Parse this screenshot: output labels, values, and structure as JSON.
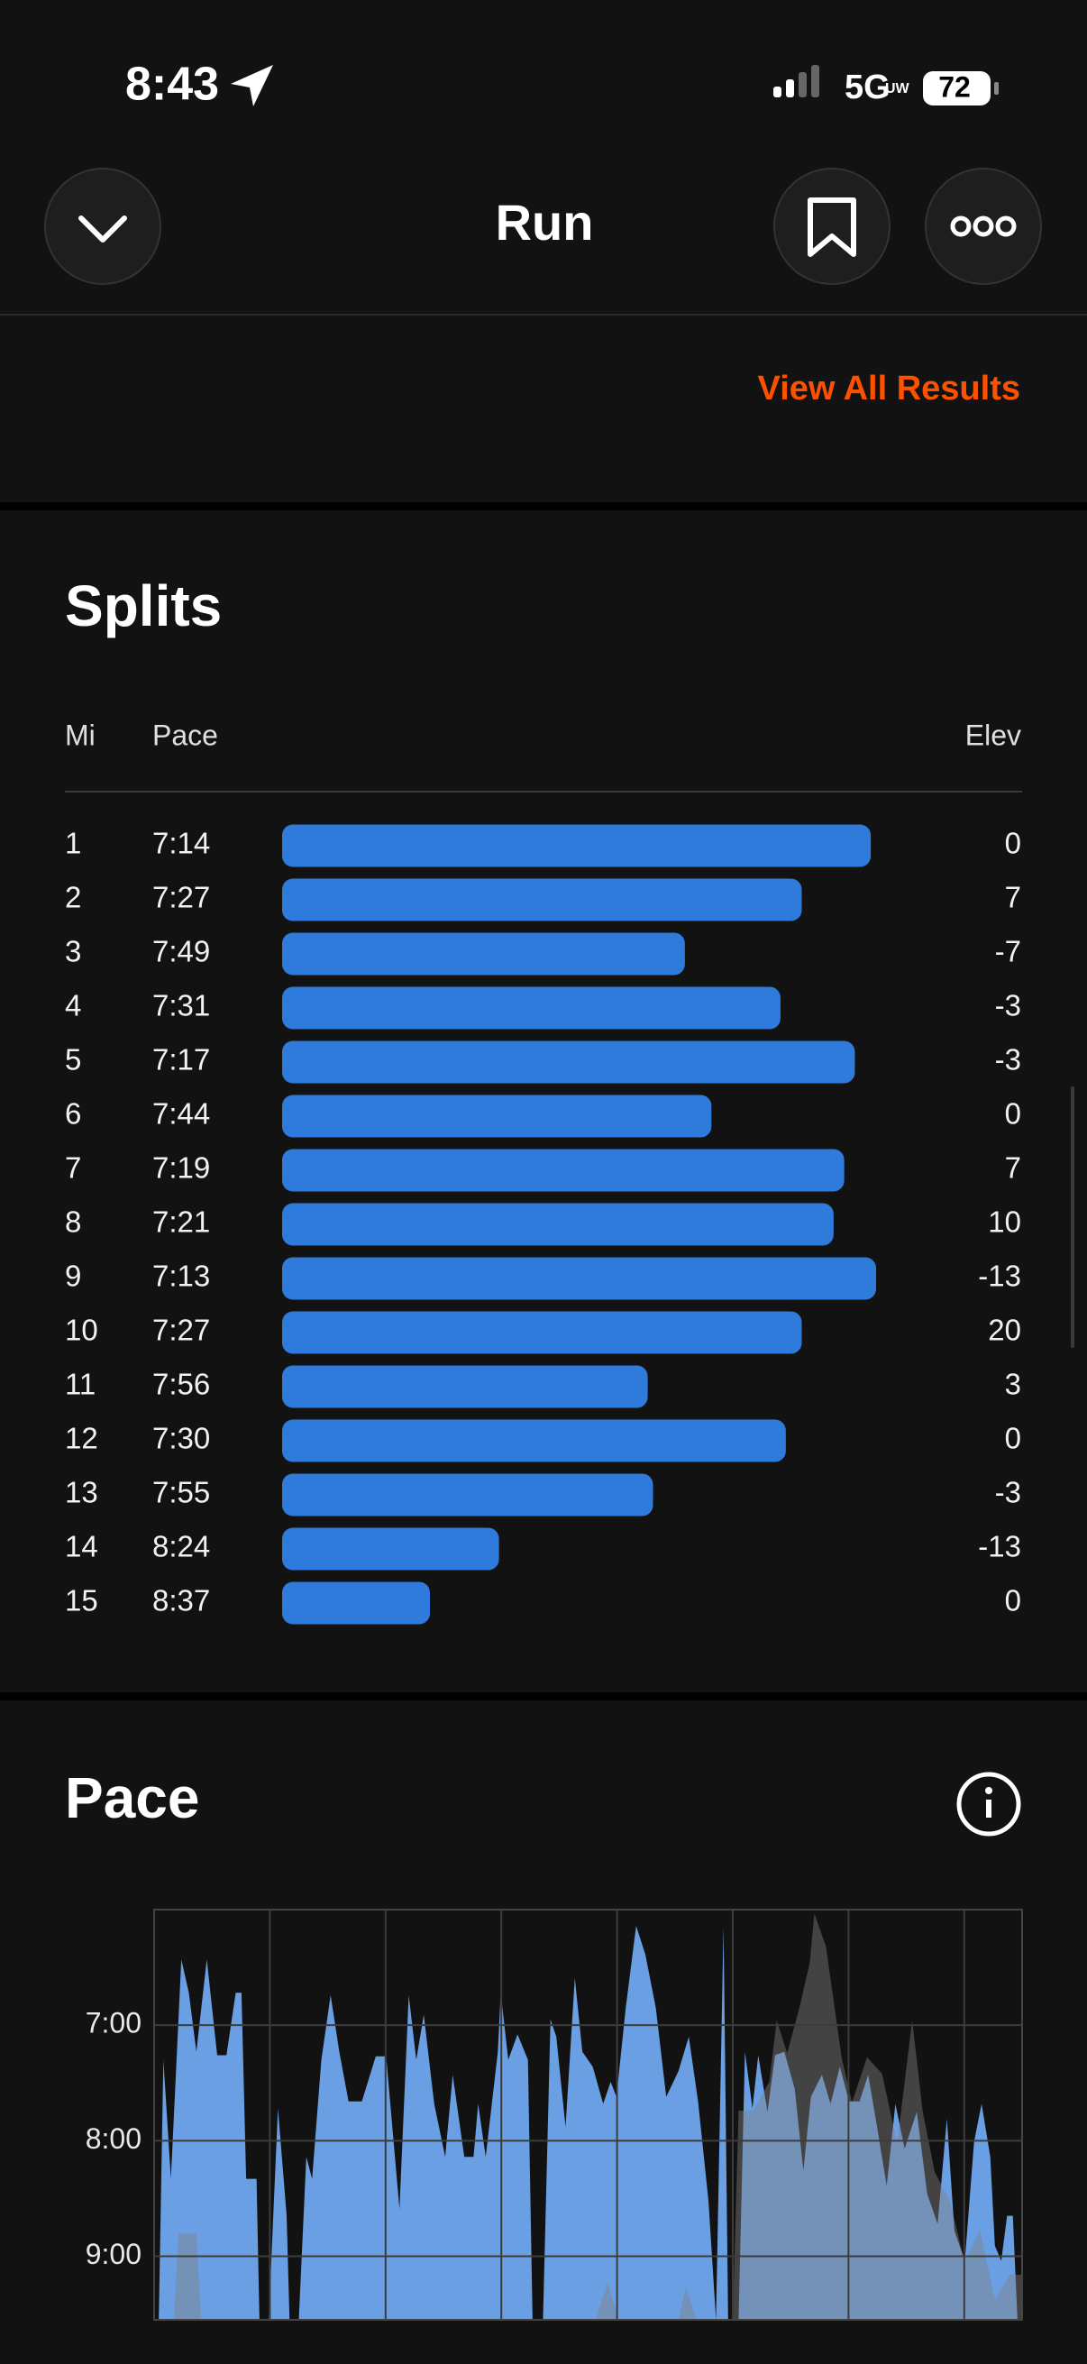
{
  "status_bar": {
    "time": "8:43",
    "network": "5G",
    "network_sub": "UW",
    "battery": "72"
  },
  "nav": {
    "title": "Run"
  },
  "results_link": "View All Results",
  "splits": {
    "title": "Splits",
    "columns": [
      "Mi",
      "Pace",
      "Elev"
    ],
    "rows": [
      [
        1,
        "7:14",
        0
      ],
      [
        2,
        "7:27",
        7
      ],
      [
        3,
        "7:49",
        -7
      ],
      [
        4,
        "7:31",
        -3
      ],
      [
        5,
        "7:17",
        -3
      ],
      [
        6,
        "7:44",
        0
      ],
      [
        7,
        "7:19",
        7
      ],
      [
        8,
        "7:21",
        10
      ],
      [
        9,
        "7:13",
        -13
      ],
      [
        10,
        "7:27",
        20
      ],
      [
        11,
        "7:56",
        3
      ],
      [
        12,
        "7:30",
        0
      ],
      [
        13,
        "7:55",
        -3
      ],
      [
        14,
        "8:24",
        -13
      ],
      [
        15,
        "8:37",
        0
      ]
    ],
    "bar_color": "#2f7bdc"
  },
  "chart_data": {
    "type": "area",
    "title": "Pace",
    "xlim": [
      0,
      15
    ],
    "xticks": [
      0,
      2,
      4,
      6,
      8,
      10,
      12,
      14
    ],
    "ylim": [
      9.55,
      6.0
    ],
    "yticks": [
      {
        "value": 7,
        "label": "7:00"
      },
      {
        "value": 8,
        "label": "8:00"
      },
      {
        "value": 9,
        "label": "9:00"
      }
    ],
    "y2lim": [
      0,
      100
    ],
    "grid": true,
    "series": [
      {
        "color": "#6a9fe3",
        "x": [
          0.08,
          0.16,
          0.29,
          0.47,
          0.6,
          0.73,
          0.91,
          1.09,
          1.25,
          1.41,
          1.51,
          1.59,
          1.77,
          1.82,
          1.98,
          2.14,
          2.29,
          2.34,
          2.5,
          2.63,
          2.73,
          2.89,
          3.05,
          3.2,
          3.36,
          3.59,
          3.83,
          4.01,
          4.24,
          4.4,
          4.53,
          4.66,
          4.84,
          5.03,
          5.16,
          5.36,
          5.52,
          5.6,
          5.73,
          5.94,
          5.99,
          6.12,
          6.28,
          6.46,
          6.54,
          6.72,
          6.85,
          6.95,
          7.11,
          7.27,
          7.4,
          7.58,
          7.76,
          7.89,
          7.99,
          8.15,
          8.33,
          8.49,
          8.67,
          8.85,
          9.06,
          9.24,
          9.4,
          9.58,
          9.71,
          9.84,
          9.92,
          10.1,
          10.21,
          10.34,
          10.44,
          10.6,
          10.73,
          10.89,
          11.07,
          11.22,
          11.35,
          11.54,
          11.69,
          11.85,
          12.01,
          12.19,
          12.34,
          12.47,
          12.66,
          12.81,
          12.97,
          13.18,
          13.36,
          13.54,
          13.7,
          13.83,
          14.01,
          14.17,
          14.3,
          14.45,
          14.53,
          14.64,
          14.74,
          14.84,
          14.92
        ],
        "values": [
          9.55,
          7.3,
          8.33,
          6.43,
          6.72,
          7.23,
          6.43,
          7.26,
          7.26,
          6.72,
          6.72,
          8.33,
          8.33,
          9.55,
          9.55,
          7.72,
          8.65,
          9.55,
          9.55,
          8.14,
          8.33,
          7.3,
          6.74,
          7.23,
          7.66,
          7.66,
          7.27,
          7.27,
          8.59,
          6.74,
          7.3,
          6.91,
          7.68,
          8.14,
          7.43,
          8.14,
          8.14,
          7.68,
          8.14,
          7.23,
          6.72,
          7.3,
          7.08,
          7.3,
          9.55,
          9.55,
          6.95,
          7.1,
          7.88,
          6.59,
          7.23,
          7.36,
          7.68,
          7.49,
          7.62,
          6.85,
          6.14,
          6.39,
          6.85,
          7.62,
          7.4,
          7.1,
          7.66,
          8.52,
          9.55,
          6.14,
          9.55,
          9.55,
          7.23,
          7.72,
          7.26,
          7.75,
          7.26,
          7.23,
          7.55,
          8.26,
          7.62,
          7.43,
          7.68,
          7.36,
          7.66,
          7.66,
          7.43,
          7.81,
          8.39,
          7.68,
          8.07,
          7.75,
          8.46,
          8.72,
          7.81,
          8.78,
          9.04,
          8.01,
          7.68,
          8.14,
          8.91,
          9.04,
          8.65,
          8.65,
          9.55
        ]
      },
      {
        "color": "rgba(128,128,128,0.45)",
        "axis": "y2",
        "x": [
          0,
          0.34,
          0.42,
          0.73,
          0.81,
          7.63,
          7.84,
          8.02,
          9.06,
          9.19,
          9.37,
          10.0,
          10.1,
          10.36,
          10.63,
          10.76,
          10.94,
          11.15,
          11.33,
          11.41,
          11.61,
          11.72,
          11.88,
          12.06,
          12.32,
          12.58,
          12.84,
          13.1,
          13.28,
          13.49,
          13.75,
          14.01,
          14.27,
          14.53,
          14.79,
          15.0
        ],
        "values": [
          0,
          0,
          21,
          21,
          0,
          0,
          9,
          0,
          0,
          8,
          0,
          0,
          51,
          51,
          58,
          73,
          65,
          76,
          87,
          99,
          91,
          80,
          64,
          53,
          64,
          60,
          43,
          73,
          51,
          36,
          29,
          14,
          22,
          5,
          11,
          11
        ]
      }
    ]
  }
}
